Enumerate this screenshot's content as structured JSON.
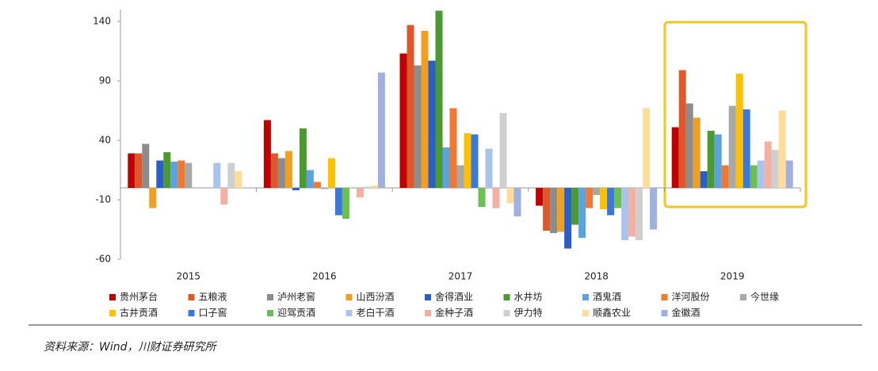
{
  "chart_data": {
    "type": "bar",
    "categories": [
      "2015",
      "2016",
      "2017",
      "2018",
      "2019"
    ],
    "ylim": [
      -60,
      150
    ],
    "yticks": [
      -60,
      -10,
      40,
      90,
      140
    ],
    "series": [
      {
        "name": "贵州茅台",
        "color": "#c00000",
        "values": [
          29,
          57,
          113,
          -15,
          51
        ]
      },
      {
        "name": "五粮液",
        "color": "#e0582a",
        "values": [
          29,
          29,
          137,
          -36,
          99
        ]
      },
      {
        "name": "泸州老窖",
        "color": "#8c8c8c",
        "values": [
          37,
          25,
          103,
          -38,
          71
        ]
      },
      {
        "name": "山西汾酒",
        "color": "#f0a020",
        "values": [
          -17,
          31,
          132,
          -37,
          59
        ]
      },
      {
        "name": "舍得酒业",
        "color": "#2a5ec8",
        "values": [
          23,
          -2,
          107,
          -51,
          14
        ]
      },
      {
        "name": "水井坊",
        "color": "#4a9a30",
        "values": [
          30,
          50,
          149,
          -31,
          48
        ]
      },
      {
        "name": "酒鬼酒",
        "color": "#5ba3e0",
        "values": [
          22,
          15,
          34,
          -42,
          45
        ]
      },
      {
        "name": "洋河股份",
        "color": "#f07830",
        "values": [
          23,
          5,
          67,
          -17,
          19
        ]
      },
      {
        "name": "今世缘",
        "color": "#a8a8a8",
        "values": [
          21,
          -1,
          19,
          -6,
          69
        ]
      },
      {
        "name": "古井贡酒",
        "color": "#ffc000",
        "values": [
          null,
          25,
          46,
          -18,
          96
        ]
      },
      {
        "name": "口子窖",
        "color": "#3a78e0",
        "values": [
          null,
          -23,
          45,
          -23,
          66
        ]
      },
      {
        "name": "迎驾贡酒",
        "color": "#6ac050",
        "values": [
          null,
          -26,
          -16,
          -17,
          19
        ]
      },
      {
        "name": "老白干酒",
        "color": "#a8c4ec",
        "values": [
          21,
          null,
          33,
          -44,
          23
        ]
      },
      {
        "name": "金种子酒",
        "color": "#f4b0a0",
        "values": [
          -14,
          -8,
          -17,
          -41,
          39
        ]
      },
      {
        "name": "伊力特",
        "color": "#cfcfcf",
        "values": [
          21,
          1,
          63,
          -44,
          32
        ]
      },
      {
        "name": "顺鑫农业",
        "color": "#ffdc98",
        "values": [
          14,
          2,
          -13,
          67,
          65
        ]
      },
      {
        "name": "金徽酒",
        "color": "#a0b0e0",
        "values": [
          null,
          97,
          -24,
          -35,
          23
        ]
      }
    ],
    "source": "资料来源：Wind，川财证券研究所"
  }
}
